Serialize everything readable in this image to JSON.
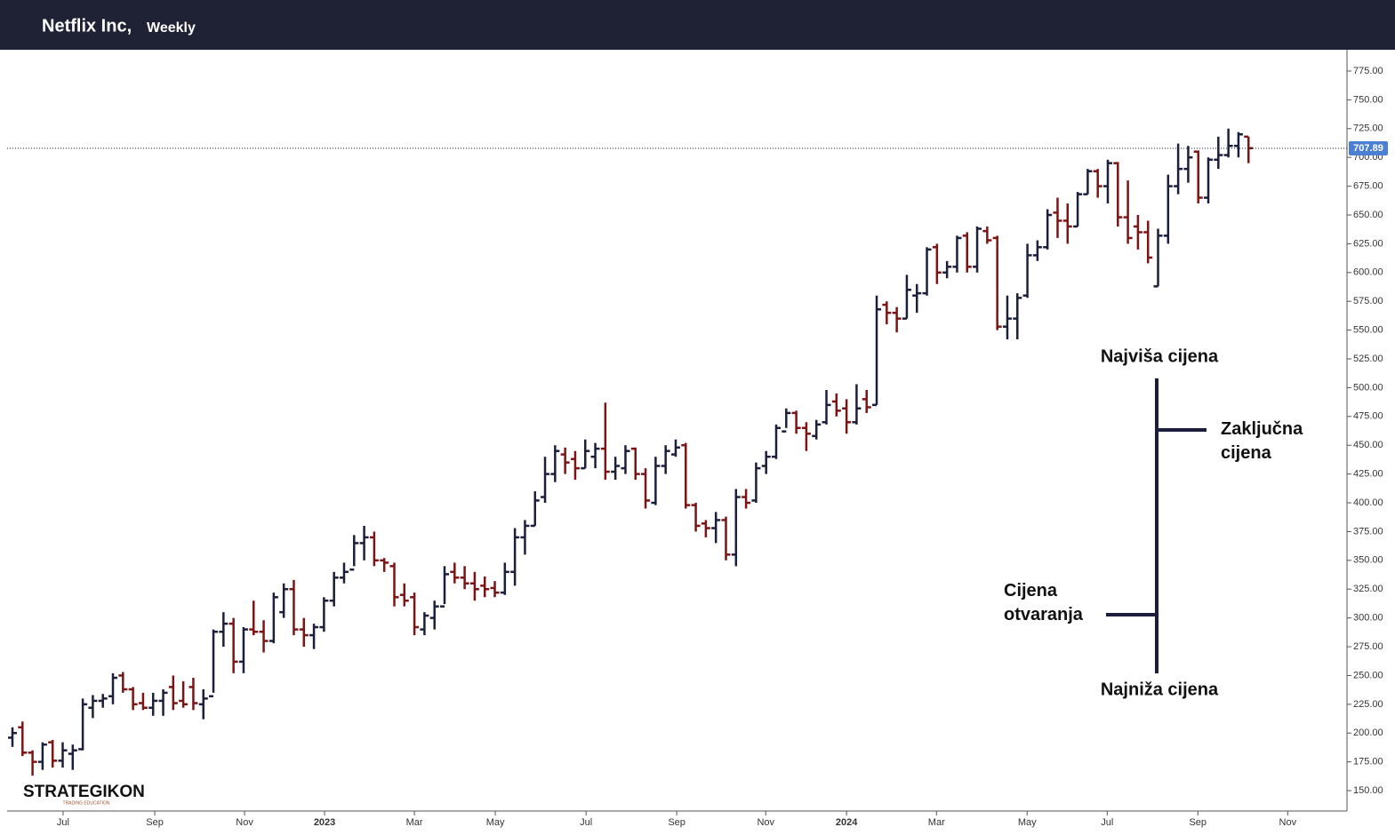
{
  "header": {
    "title": "Netflix Inc,",
    "interval": "Weekly"
  },
  "logo": {
    "name": "STRATEGIKON",
    "tagline": "TRADING EDUCATION"
  },
  "annotations": {
    "high": "Najviša cijena",
    "close": "Zaključna cijena",
    "open": "Cijena otvaranja",
    "low": "Najniža cijena"
  },
  "chart_data": {
    "type": "ohlc",
    "up_color": "#1c1f3b",
    "down_color": "#7b1515",
    "open": [
      196,
      205,
      183,
      175,
      192,
      176,
      182,
      186,
      222,
      228,
      232,
      250,
      238,
      226,
      222,
      228,
      240,
      228,
      240,
      225,
      232,
      288,
      295,
      262,
      290,
      288,
      280,
      305,
      325,
      290,
      285,
      292,
      315,
      335,
      342,
      365,
      370,
      350,
      345,
      320,
      318,
      290,
      300,
      310,
      340,
      335,
      330,
      328,
      326,
      322,
      340,
      370,
      380,
      405,
      425,
      442,
      438,
      430,
      440,
      447,
      427,
      430,
      447,
      425,
      400,
      432,
      442,
      450,
      398,
      382,
      378,
      385,
      355,
      405,
      402,
      432,
      440,
      462,
      478,
      465,
      458,
      470,
      488,
      482,
      470,
      490,
      485,
      572,
      565,
      560,
      580,
      582,
      622,
      600,
      605,
      632,
      605,
      636,
      630,
      553,
      560,
      580,
      615,
      622,
      652,
      645,
      640,
      668,
      688,
      675,
      695,
      648,
      640,
      635,
      588,
      632,
      675,
      690,
      705,
      665,
      698,
      702,
      710,
      718
    ],
    "high": [
      205,
      210,
      185,
      192,
      194,
      192,
      190,
      230,
      233,
      234,
      252,
      253,
      240,
      235,
      235,
      238,
      250,
      245,
      248,
      238,
      290,
      305,
      300,
      292,
      315,
      298,
      322,
      330,
      333,
      300,
      295,
      318,
      340,
      348,
      372,
      380,
      375,
      352,
      348,
      330,
      322,
      305,
      315,
      345,
      348,
      345,
      340,
      336,
      332,
      348,
      378,
      385,
      410,
      440,
      450,
      448,
      445,
      455,
      452,
      487,
      440,
      450,
      448,
      430,
      440,
      450,
      455,
      452,
      400,
      385,
      392,
      388,
      412,
      412,
      435,
      445,
      468,
      482,
      480,
      470,
      472,
      498,
      495,
      490,
      503,
      498,
      580,
      575,
      570,
      598,
      590,
      622,
      625,
      610,
      632,
      635,
      640,
      640,
      632,
      580,
      582,
      625,
      628,
      655,
      665,
      660,
      670,
      690,
      690,
      698,
      696,
      680,
      650,
      645,
      638,
      685,
      712,
      710,
      706,
      700,
      718,
      725,
      722,
      718
    ],
    "low": [
      188,
      180,
      163,
      168,
      170,
      170,
      168,
      185,
      213,
      222,
      225,
      235,
      220,
      220,
      215,
      215,
      220,
      222,
      220,
      212,
      235,
      275,
      252,
      252,
      285,
      270,
      278,
      300,
      285,
      275,
      273,
      288,
      310,
      330,
      345,
      350,
      345,
      340,
      310,
      310,
      285,
      285,
      290,
      312,
      330,
      325,
      315,
      318,
      318,
      320,
      328,
      355,
      380,
      400,
      418,
      425,
      420,
      430,
      430,
      420,
      420,
      425,
      420,
      395,
      398,
      425,
      440,
      395,
      375,
      370,
      365,
      350,
      345,
      395,
      400,
      425,
      438,
      465,
      460,
      445,
      455,
      468,
      475,
      460,
      468,
      478,
      485,
      555,
      548,
      560,
      565,
      580,
      590,
      595,
      600,
      600,
      600,
      625,
      550,
      542,
      542,
      578,
      610,
      620,
      630,
      625,
      640,
      668,
      665,
      660,
      640,
      625,
      620,
      608,
      588,
      625,
      668,
      678,
      660,
      660,
      690,
      700,
      700,
      695
    ],
    "close": [
      200,
      183,
      175,
      190,
      176,
      185,
      185,
      225,
      228,
      230,
      248,
      238,
      225,
      222,
      228,
      235,
      226,
      225,
      226,
      230,
      288,
      295,
      262,
      290,
      288,
      280,
      318,
      325,
      290,
      285,
      292,
      315,
      335,
      340,
      365,
      370,
      350,
      348,
      318,
      315,
      292,
      302,
      310,
      338,
      335,
      330,
      325,
      325,
      322,
      340,
      370,
      380,
      402,
      425,
      445,
      435,
      430,
      445,
      447,
      427,
      432,
      445,
      425,
      402,
      432,
      445,
      448,
      398,
      380,
      378,
      385,
      355,
      405,
      400,
      430,
      440,
      465,
      478,
      465,
      460,
      468,
      485,
      480,
      470,
      482,
      483,
      568,
      565,
      560,
      585,
      582,
      620,
      600,
      605,
      630,
      605,
      638,
      628,
      553,
      560,
      578,
      615,
      622,
      650,
      645,
      640,
      668,
      688,
      675,
      695,
      648,
      630,
      635,
      613,
      632,
      675,
      690,
      700,
      665,
      698,
      702,
      710,
      720,
      708
    ],
    "ylim": [
      132.3,
      793.5
    ],
    "yticks": [
      {
        "value": 150,
        "label": "150.00"
      },
      {
        "value": 175,
        "label": "175.00"
      },
      {
        "value": 200,
        "label": "200.00"
      },
      {
        "value": 225,
        "label": "225.00"
      },
      {
        "value": 250,
        "label": "250.00"
      },
      {
        "value": 275,
        "label": "275.00"
      },
      {
        "value": 300,
        "label": "300.00"
      },
      {
        "value": 325,
        "label": "325.00"
      },
      {
        "value": 350,
        "label": "350.00"
      },
      {
        "value": 375,
        "label": "375.00"
      },
      {
        "value": 400,
        "label": "400.00"
      },
      {
        "value": 425,
        "label": "425.00"
      },
      {
        "value": 450,
        "label": "450.00"
      },
      {
        "value": 475,
        "label": "475.00"
      },
      {
        "value": 500,
        "label": "500.00"
      },
      {
        "value": 525,
        "label": "525.00"
      },
      {
        "value": 550,
        "label": "550.00"
      },
      {
        "value": 575,
        "label": "575.00"
      },
      {
        "value": 600,
        "label": "600.00"
      },
      {
        "value": 625,
        "label": "625.00"
      },
      {
        "value": 650,
        "label": "650.00"
      },
      {
        "value": 675,
        "label": "675.00"
      },
      {
        "value": 700,
        "label": "700.00"
      },
      {
        "value": 725,
        "label": "725.00"
      },
      {
        "value": 750,
        "label": "750.00"
      },
      {
        "value": 775,
        "label": "775.00"
      }
    ],
    "xlim": [
      -0.53,
      132.8
    ],
    "xticks": [
      {
        "value": 5.04,
        "label": "Jul"
      },
      {
        "value": 14.16,
        "label": "Sep"
      },
      {
        "value": 23.1,
        "label": "Nov"
      },
      {
        "value": 31.06,
        "label": "2023"
      },
      {
        "value": 40.0,
        "label": "Mar"
      },
      {
        "value": 48.05,
        "label": "May"
      },
      {
        "value": 57.08,
        "label": "Jul"
      },
      {
        "value": 66.1,
        "label": "Sep"
      },
      {
        "value": 74.96,
        "label": "Nov"
      },
      {
        "value": 83.0,
        "label": "2024"
      },
      {
        "value": 91.95,
        "label": "Mar"
      },
      {
        "value": 100.97,
        "label": "May"
      },
      {
        "value": 108.94,
        "label": "Jul"
      },
      {
        "value": 117.96,
        "label": "Sep"
      },
      {
        "value": 126.9,
        "label": "Nov"
      }
    ],
    "last_price": 707.89,
    "last_price_color": "#4a7fd4"
  }
}
